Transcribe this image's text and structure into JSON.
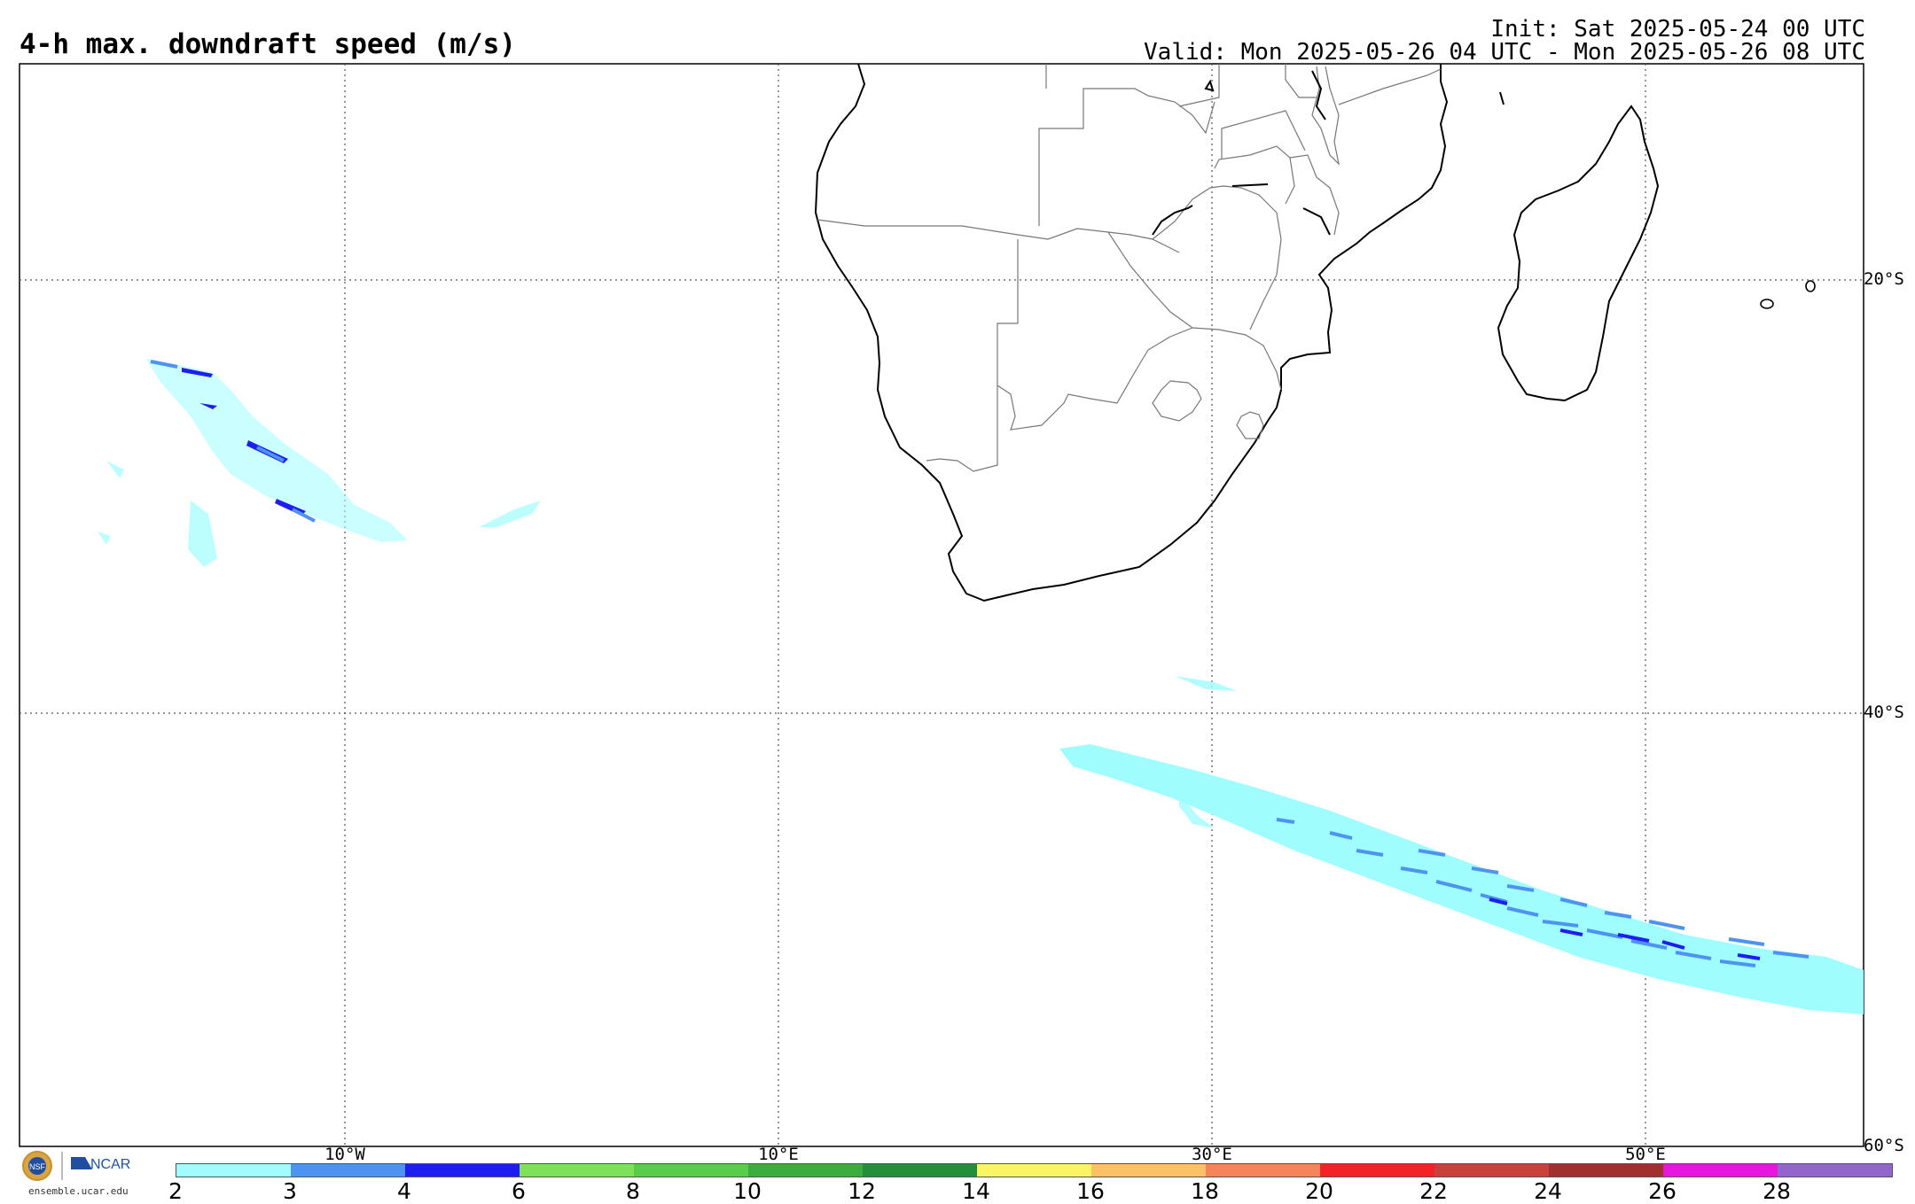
{
  "header": {
    "title": "4-h max. downdraft speed (m/s)",
    "init": "Init: Sat 2025-05-24 00 UTC",
    "valid": "Valid: Mon 2025-05-26 04 UTC - Mon 2025-05-26 08 UTC"
  },
  "map": {
    "lon_labels": [
      "10°W",
      "10°E",
      "30°E",
      "50°E"
    ],
    "lat_labels": [
      "20°S",
      "40°S",
      "60°S"
    ]
  },
  "colorbar": {
    "ticks": [
      "2",
      "3",
      "4",
      "6",
      "8",
      "10",
      "12",
      "14",
      "16",
      "18",
      "20",
      "22",
      "24",
      "26",
      "28"
    ],
    "colors": [
      "#a0fdfe",
      "#4e93f0",
      "#1e1ef0",
      "#7de25a",
      "#57cd4b",
      "#3aad3e",
      "#248f3a",
      "#faf564",
      "#fcc066",
      "#f6845a",
      "#f12327",
      "#c8413b",
      "#a02f2d",
      "#e817e0",
      "#9265cd"
    ]
  },
  "footer": {
    "site": "ensemble.ucar.edu",
    "logo_text": "NCAR",
    "nsf_text": "NSF"
  }
}
